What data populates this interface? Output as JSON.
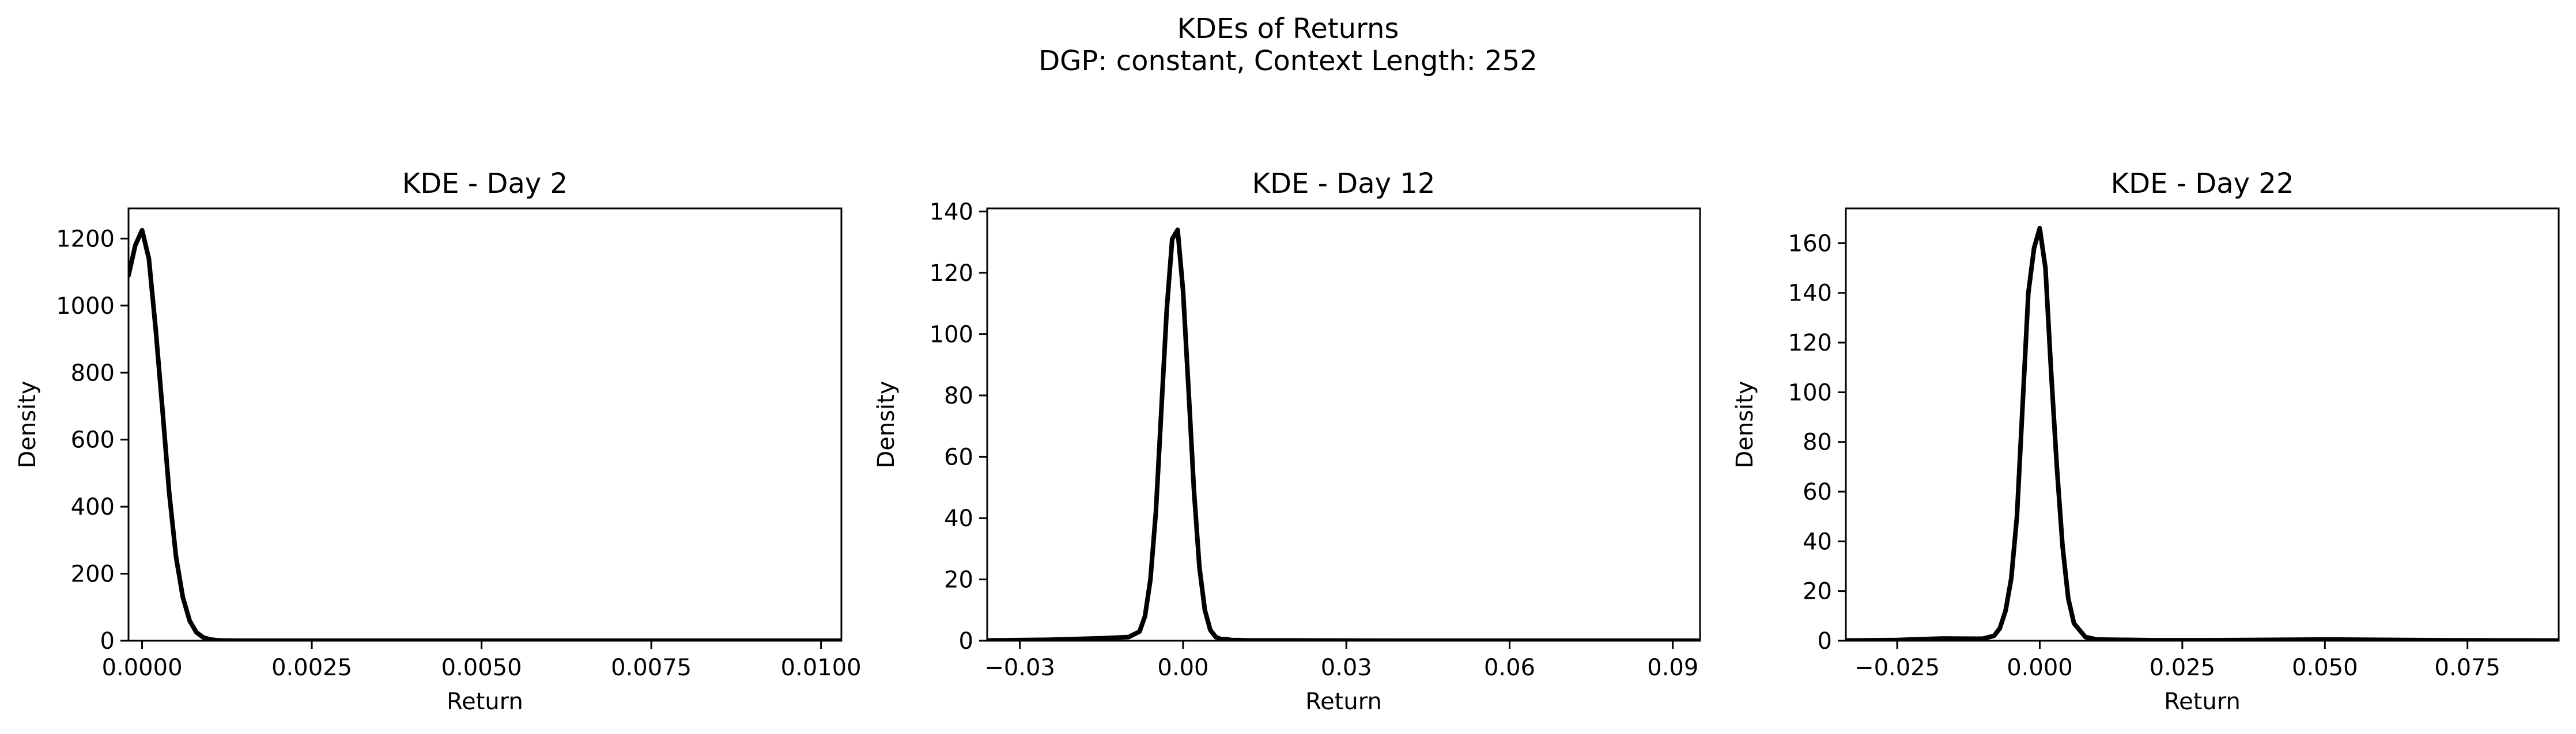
{
  "figure": {
    "title_line1": "KDEs of Returns",
    "title_line2": "DGP: constant, Context Length: 252"
  },
  "chart_data": [
    {
      "type": "line",
      "title": "KDE - Day 2",
      "xlabel": "Return",
      "ylabel": "Density",
      "xlim": [
        -0.0002,
        0.0103
      ],
      "ylim": [
        0,
        1290
      ],
      "xticks": [
        0.0,
        0.0025,
        0.005,
        0.0075,
        0.01
      ],
      "xtick_labels": [
        "0.0000",
        "0.0025",
        "0.0050",
        "0.0075",
        "0.0100"
      ],
      "yticks": [
        0,
        200,
        400,
        600,
        800,
        1000,
        1200
      ],
      "ytick_labels": [
        "0",
        "200",
        "400",
        "600",
        "800",
        "1000",
        "1200"
      ],
      "grid": false,
      "line_color": "#000000",
      "series": [
        {
          "x": [
            -0.0002,
            -0.0001,
            0.0,
            0.0001,
            0.0002,
            0.0003,
            0.0004,
            0.0005,
            0.0006,
            0.0007,
            0.0008,
            0.0009,
            0.001,
            0.0011,
            0.0012,
            0.0014,
            0.0016,
            0.002,
            0.003,
            0.005,
            0.0075,
            0.01,
            0.0103
          ],
          "y": [
            1090,
            1180,
            1225,
            1140,
            930,
            690,
            440,
            250,
            130,
            60,
            25,
            10,
            4,
            1.5,
            0.6,
            0.2,
            0.1,
            0,
            0,
            0,
            0,
            0,
            0
          ]
        }
      ]
    },
    {
      "type": "line",
      "title": "KDE - Day 12",
      "xlabel": "Return",
      "ylabel": "Density",
      "xlim": [
        -0.036,
        0.095
      ],
      "ylim": [
        0,
        141
      ],
      "xticks": [
        -0.03,
        0.0,
        0.03,
        0.06,
        0.09
      ],
      "xtick_labels": [
        "−0.03",
        "0.00",
        "0.03",
        "0.06",
        "0.09"
      ],
      "yticks": [
        0,
        20,
        40,
        60,
        80,
        100,
        120,
        140
      ],
      "ytick_labels": [
        "0",
        "20",
        "40",
        "60",
        "80",
        "100",
        "120",
        "140"
      ],
      "grid": false,
      "line_color": "#000000",
      "series": [
        {
          "x": [
            -0.036,
            -0.025,
            -0.015,
            -0.01,
            -0.008,
            -0.007,
            -0.006,
            -0.005,
            -0.004,
            -0.003,
            -0.002,
            -0.001,
            0.0,
            0.001,
            0.002,
            0.003,
            0.004,
            0.005,
            0.006,
            0.007,
            0.008,
            0.009,
            0.01,
            0.012,
            0.02,
            0.04,
            0.06,
            0.08,
            0.095
          ],
          "y": [
            0.1,
            0.3,
            0.8,
            1.2,
            3,
            8,
            20,
            42,
            75,
            108,
            131,
            134,
            114,
            82,
            49,
            24,
            10,
            3.5,
            1.2,
            0.5,
            0.5,
            0.2,
            0.2,
            0.1,
            0.1,
            0,
            0,
            0,
            0
          ]
        }
      ]
    },
    {
      "type": "line",
      "title": "KDE - Day 22",
      "xlabel": "Return",
      "ylabel": "Density",
      "xlim": [
        -0.034,
        0.091
      ],
      "ylim": [
        0,
        174
      ],
      "xticks": [
        -0.025,
        0.0,
        0.025,
        0.05,
        0.075
      ],
      "xtick_labels": [
        "−0.025",
        "0.000",
        "0.025",
        "0.050",
        "0.075"
      ],
      "yticks": [
        0,
        20,
        40,
        60,
        80,
        100,
        120,
        140,
        160
      ],
      "ytick_labels": [
        "0",
        "20",
        "40",
        "60",
        "80",
        "100",
        "120",
        "140",
        "160"
      ],
      "grid": false,
      "line_color": "#000000",
      "series": [
        {
          "x": [
            -0.034,
            -0.025,
            -0.017,
            -0.01,
            -0.008,
            -0.007,
            -0.006,
            -0.005,
            -0.004,
            -0.003,
            -0.002,
            -0.001,
            0.0,
            0.001,
            0.002,
            0.003,
            0.004,
            0.005,
            0.006,
            0.008,
            0.01,
            0.02,
            0.03,
            0.05,
            0.07,
            0.091
          ],
          "y": [
            0.1,
            0.3,
            0.9,
            0.8,
            2,
            5,
            12,
            25,
            50,
            95,
            140,
            158,
            166,
            150,
            108,
            70,
            38,
            17,
            7,
            1.5,
            0.5,
            0.2,
            0.2,
            0.5,
            0.2,
            0.1
          ]
        }
      ]
    }
  ]
}
